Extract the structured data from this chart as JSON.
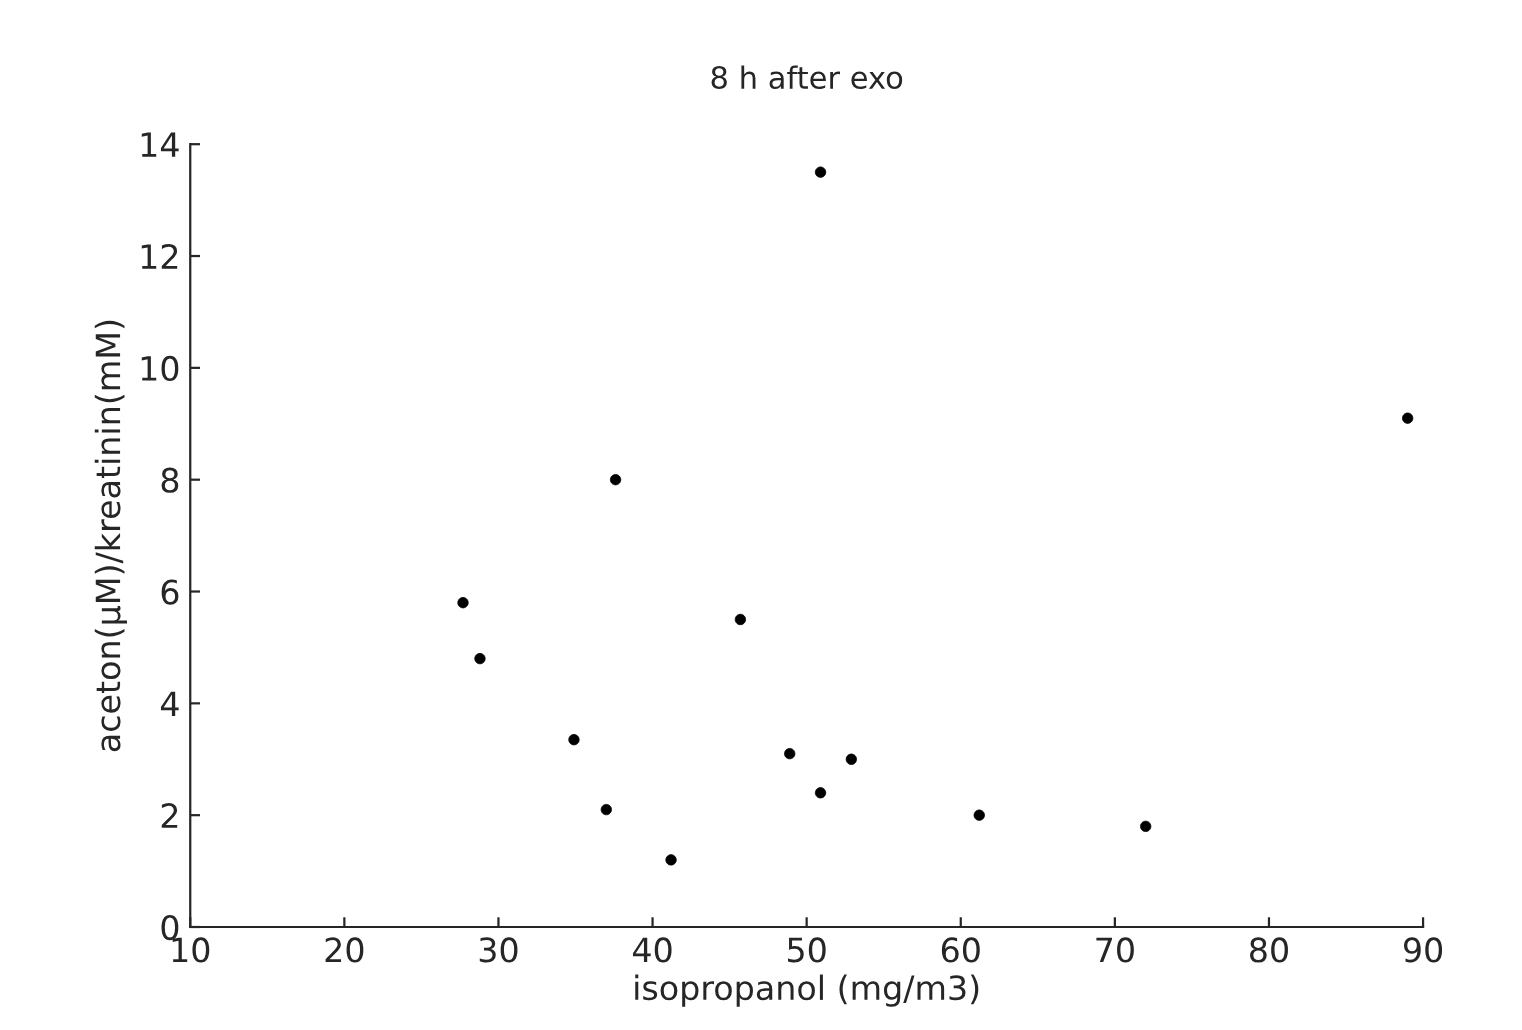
{
  "chart_data": {
    "type": "scatter",
    "title": "8 h after exo",
    "xlabel": "isopropanol (mg/m3)",
    "ylabel": "aceton(µM)/kreatinin(mM)",
    "x": [
      27.7,
      28.8,
      34.9,
      37.0,
      37.6,
      41.2,
      45.7,
      48.9,
      50.9,
      50.9,
      52.9,
      61.2,
      72.0,
      89.0
    ],
    "values": [
      5.8,
      4.8,
      3.35,
      2.1,
      8.0,
      1.2,
      5.5,
      3.1,
      13.5,
      2.4,
      3.0,
      2.0,
      1.8,
      9.1
    ],
    "color": "#000000",
    "marker": "circle",
    "grid": false,
    "xlim": [
      10,
      90
    ],
    "xticks": [
      10,
      20,
      30,
      40,
      50,
      60,
      70,
      80,
      90
    ],
    "ylim": [
      0,
      14
    ],
    "yticks": [
      0,
      2,
      4,
      6,
      8,
      10,
      12,
      14
    ]
  }
}
